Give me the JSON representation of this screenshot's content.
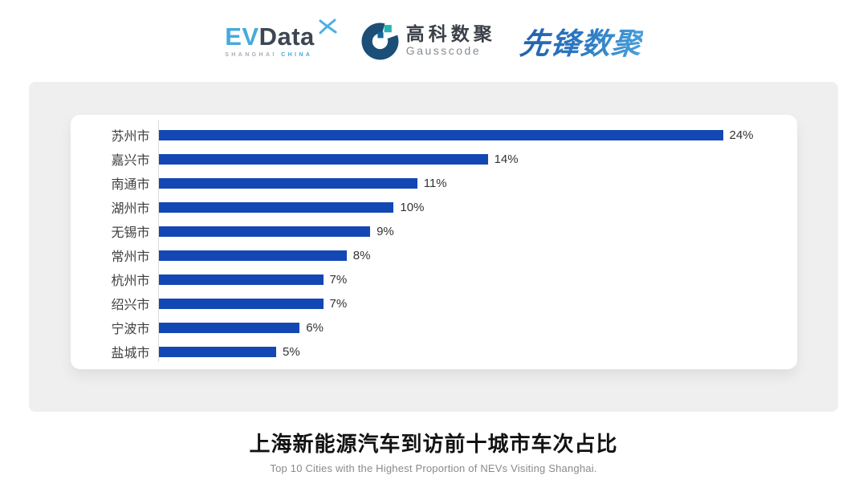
{
  "header": {
    "evdata": {
      "ev": "EV",
      "data": "Data",
      "sub_shanghai": "SHANGHAI",
      "sub_china": "CHINA",
      "ev_color": "#45aadc",
      "data_color": "#3d4653"
    },
    "gausscode": {
      "cn_name": "高科数聚",
      "en_name": "Gausscode",
      "mark_color": "#1b4f78",
      "mark_accent_teal": "#27b3b1",
      "mark_accent_blue": "#14679a"
    },
    "pioneer": {
      "wordmark": "先锋数聚",
      "color": "#2f7ec6"
    }
  },
  "chart_data": {
    "type": "bar",
    "orientation": "horizontal",
    "categories": [
      "苏州市",
      "嘉兴市",
      "南通市",
      "湖州市",
      "无锡市",
      "常州市",
      "杭州市",
      "绍兴市",
      "宁波市",
      "盐城市"
    ],
    "values": [
      24,
      14,
      11,
      10,
      9,
      8,
      7,
      7,
      6,
      5
    ],
    "value_labels": [
      "24%",
      "14%",
      "11%",
      "10%",
      "9%",
      "8%",
      "7%",
      "7%",
      "6%",
      "5%"
    ],
    "bar_color": "#1348b4",
    "xlim": [
      0,
      25
    ],
    "grid": false,
    "legend": "none",
    "value_label_position": "end-of-bar"
  },
  "footer": {
    "title": "上海新能源汽车到访前十城市车次占比",
    "subtitle": "Top 10 Cities with the Highest Proportion of  NEVs Visiting Shanghai."
  }
}
